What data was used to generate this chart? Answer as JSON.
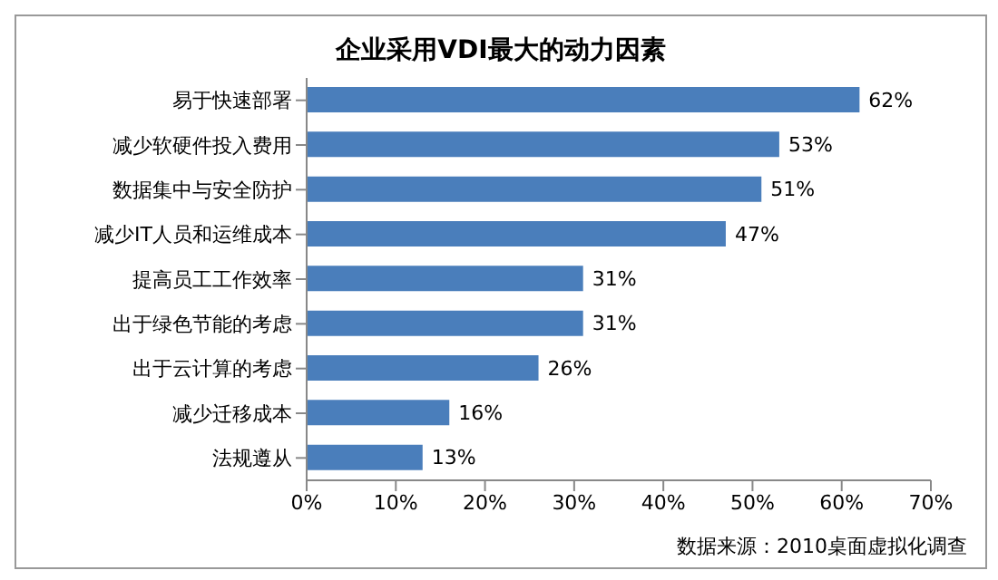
{
  "chart_data": {
    "type": "bar",
    "orientation": "horizontal",
    "title": "企业采用VDI最大的动力因素",
    "categories": [
      "易于快速部署",
      "减少软硬件投入费用",
      "数据集中与安全防护",
      "减少IT人员和运维成本",
      "提高员工工作效率",
      "出于绿色节能的考虑",
      "出于云计算的考虑",
      "减少迁移成本",
      "法规遵从"
    ],
    "values": [
      62,
      53,
      51,
      47,
      31,
      31,
      26,
      16,
      13
    ],
    "value_labels": [
      "62%",
      "53%",
      "51%",
      "47%",
      "31%",
      "31%",
      "26%",
      "16%",
      "13%"
    ],
    "color": "#4a7ebb",
    "xlim": [
      0,
      70
    ],
    "xticks": [
      {
        "value": 0,
        "label": "0%"
      },
      {
        "value": 10,
        "label": "10%"
      },
      {
        "value": 20,
        "label": "20%"
      },
      {
        "value": 30,
        "label": "30%"
      },
      {
        "value": 40,
        "label": "40%"
      },
      {
        "value": 50,
        "label": "50%"
      },
      {
        "value": 60,
        "label": "60%"
      },
      {
        "value": 70,
        "label": "70%"
      }
    ],
    "annotations": [
      "数据来源：2010桌面虚拟化调查"
    ]
  }
}
